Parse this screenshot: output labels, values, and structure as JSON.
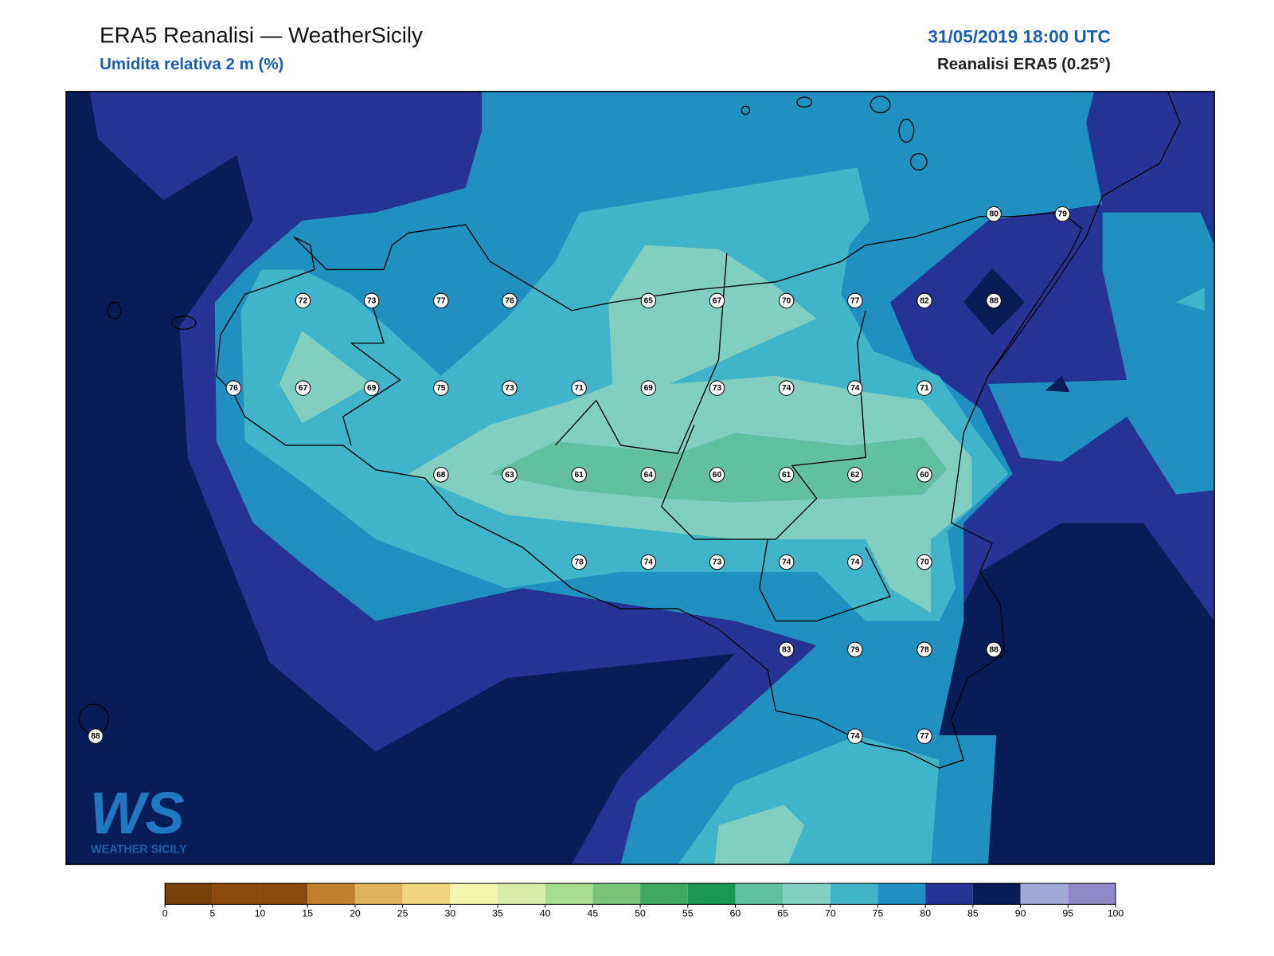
{
  "header": {
    "title": "ERA5 Reanalisi — WeatherSicily",
    "subtitle": "Umidita relativa 2 m (%)",
    "timestamp": "31/05/2019 18:00 UTC",
    "source": "Reanalisi ERA5 (0.25°)"
  },
  "stations": [
    80,
    79,
    72,
    73,
    77,
    76,
    65,
    67,
    70,
    77,
    82,
    88,
    76,
    67,
    69,
    75,
    73,
    71,
    69,
    73,
    74,
    74,
    71,
    68,
    63,
    61,
    64,
    60,
    61,
    62,
    60,
    78,
    74,
    73,
    74,
    74,
    70,
    83,
    79,
    78,
    88,
    88,
    74,
    77
  ],
  "colorbar": {
    "ticks": [
      0,
      5,
      10,
      15,
      20,
      25,
      30,
      35,
      40,
      45,
      50,
      55,
      60,
      65,
      70,
      75,
      80,
      85,
      90,
      95,
      100
    ],
    "colors": [
      "#774108",
      "#8a4a0c",
      "#8a4a0c",
      "#c0802e",
      "#e0b25e",
      "#f0d67e",
      "#f5f5b0",
      "#d8eca8",
      "#a8dc90",
      "#78c478",
      "#40a860",
      "#189850",
      "#60c0a0",
      "#80cfc0",
      "#40b4c8",
      "#2090c0",
      "#253494",
      "#081d58",
      "#a0a8d8",
      "#9088c8"
    ]
  },
  "logo": {
    "mark": "WS",
    "name": "WEATHER SICILY"
  }
}
